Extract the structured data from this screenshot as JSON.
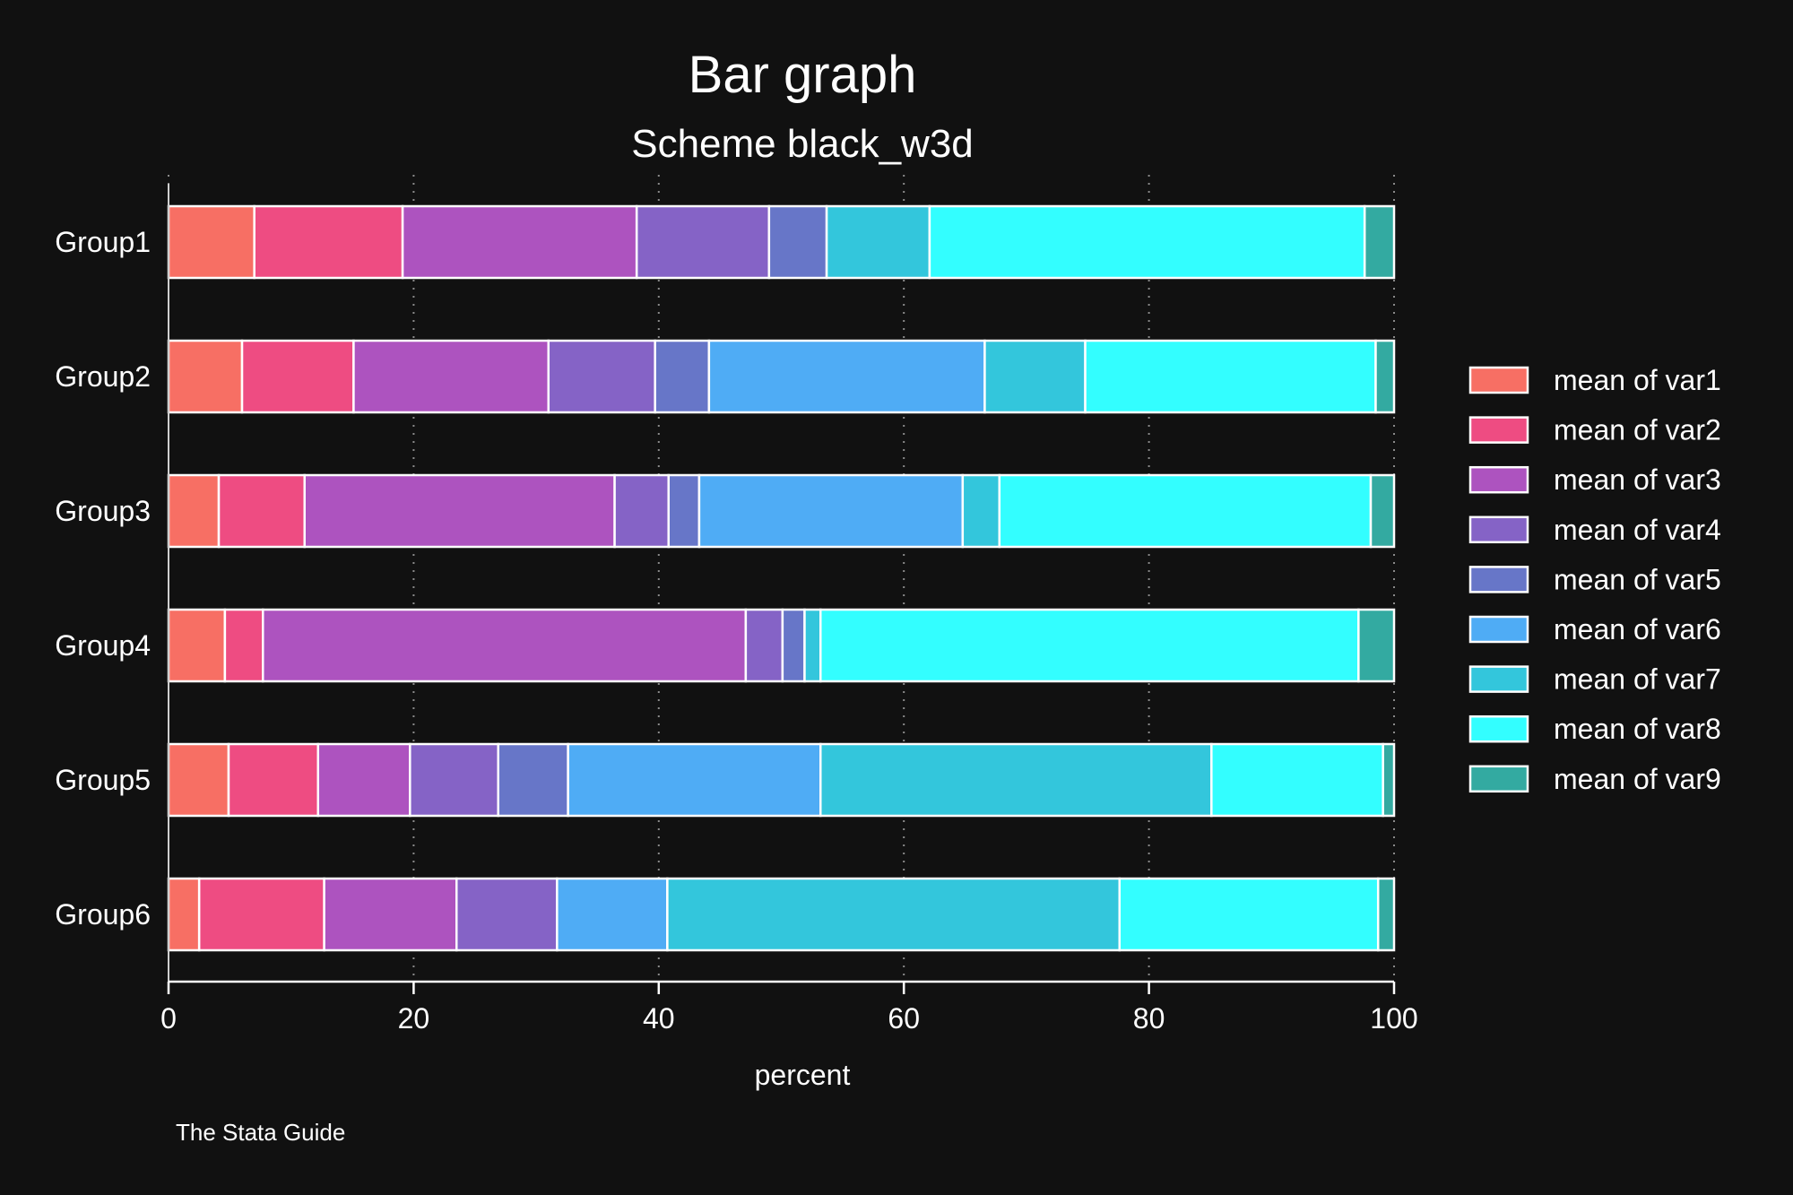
{
  "chart_data": {
    "type": "bar",
    "orientation": "horizontal",
    "stacked": true,
    "title": "Bar graph",
    "subtitle": "Scheme black_w3d",
    "xlabel": "percent",
    "xlim": [
      0,
      100
    ],
    "xticks": [
      0,
      20,
      40,
      60,
      80,
      100
    ],
    "grid": true,
    "legend_position": "right",
    "note": "The Stata Guide",
    "categories": [
      "Group1",
      "Group2",
      "Group3",
      "Group4",
      "Group5",
      "Group6"
    ],
    "series": [
      {
        "name": "mean of var1",
        "color": "#f76f64",
        "values": [
          7.0,
          6.0,
          4.1,
          4.6,
          4.9,
          2.5
        ]
      },
      {
        "name": "mean of var2",
        "color": "#ee4c82",
        "values": [
          12.1,
          9.1,
          7.0,
          3.1,
          7.3,
          10.2
        ]
      },
      {
        "name": "mean of var3",
        "color": "#ad53bf",
        "values": [
          19.1,
          15.9,
          25.3,
          39.4,
          7.5,
          10.8
        ]
      },
      {
        "name": "mean of var4",
        "color": "#8563c6",
        "values": [
          10.8,
          8.7,
          4.4,
          3.0,
          7.2,
          8.2
        ]
      },
      {
        "name": "mean of var5",
        "color": "#6776c8",
        "values": [
          4.7,
          4.4,
          2.5,
          1.8,
          5.7,
          0.0
        ]
      },
      {
        "name": "mean of var6",
        "color": "#4facf5",
        "values": [
          0.0,
          22.5,
          21.5,
          0.0,
          20.6,
          9.0
        ]
      },
      {
        "name": "mean of var7",
        "color": "#33c6dc",
        "values": [
          8.4,
          8.2,
          3.0,
          1.3,
          31.9,
          36.9
        ]
      },
      {
        "name": "mean of var8",
        "color": "#33feff",
        "values": [
          35.5,
          23.7,
          30.3,
          43.9,
          14.0,
          21.1
        ]
      },
      {
        "name": "mean of var9",
        "color": "#33aaa1",
        "values": [
          2.4,
          1.5,
          1.9,
          2.9,
          0.9,
          1.3
        ]
      }
    ]
  }
}
